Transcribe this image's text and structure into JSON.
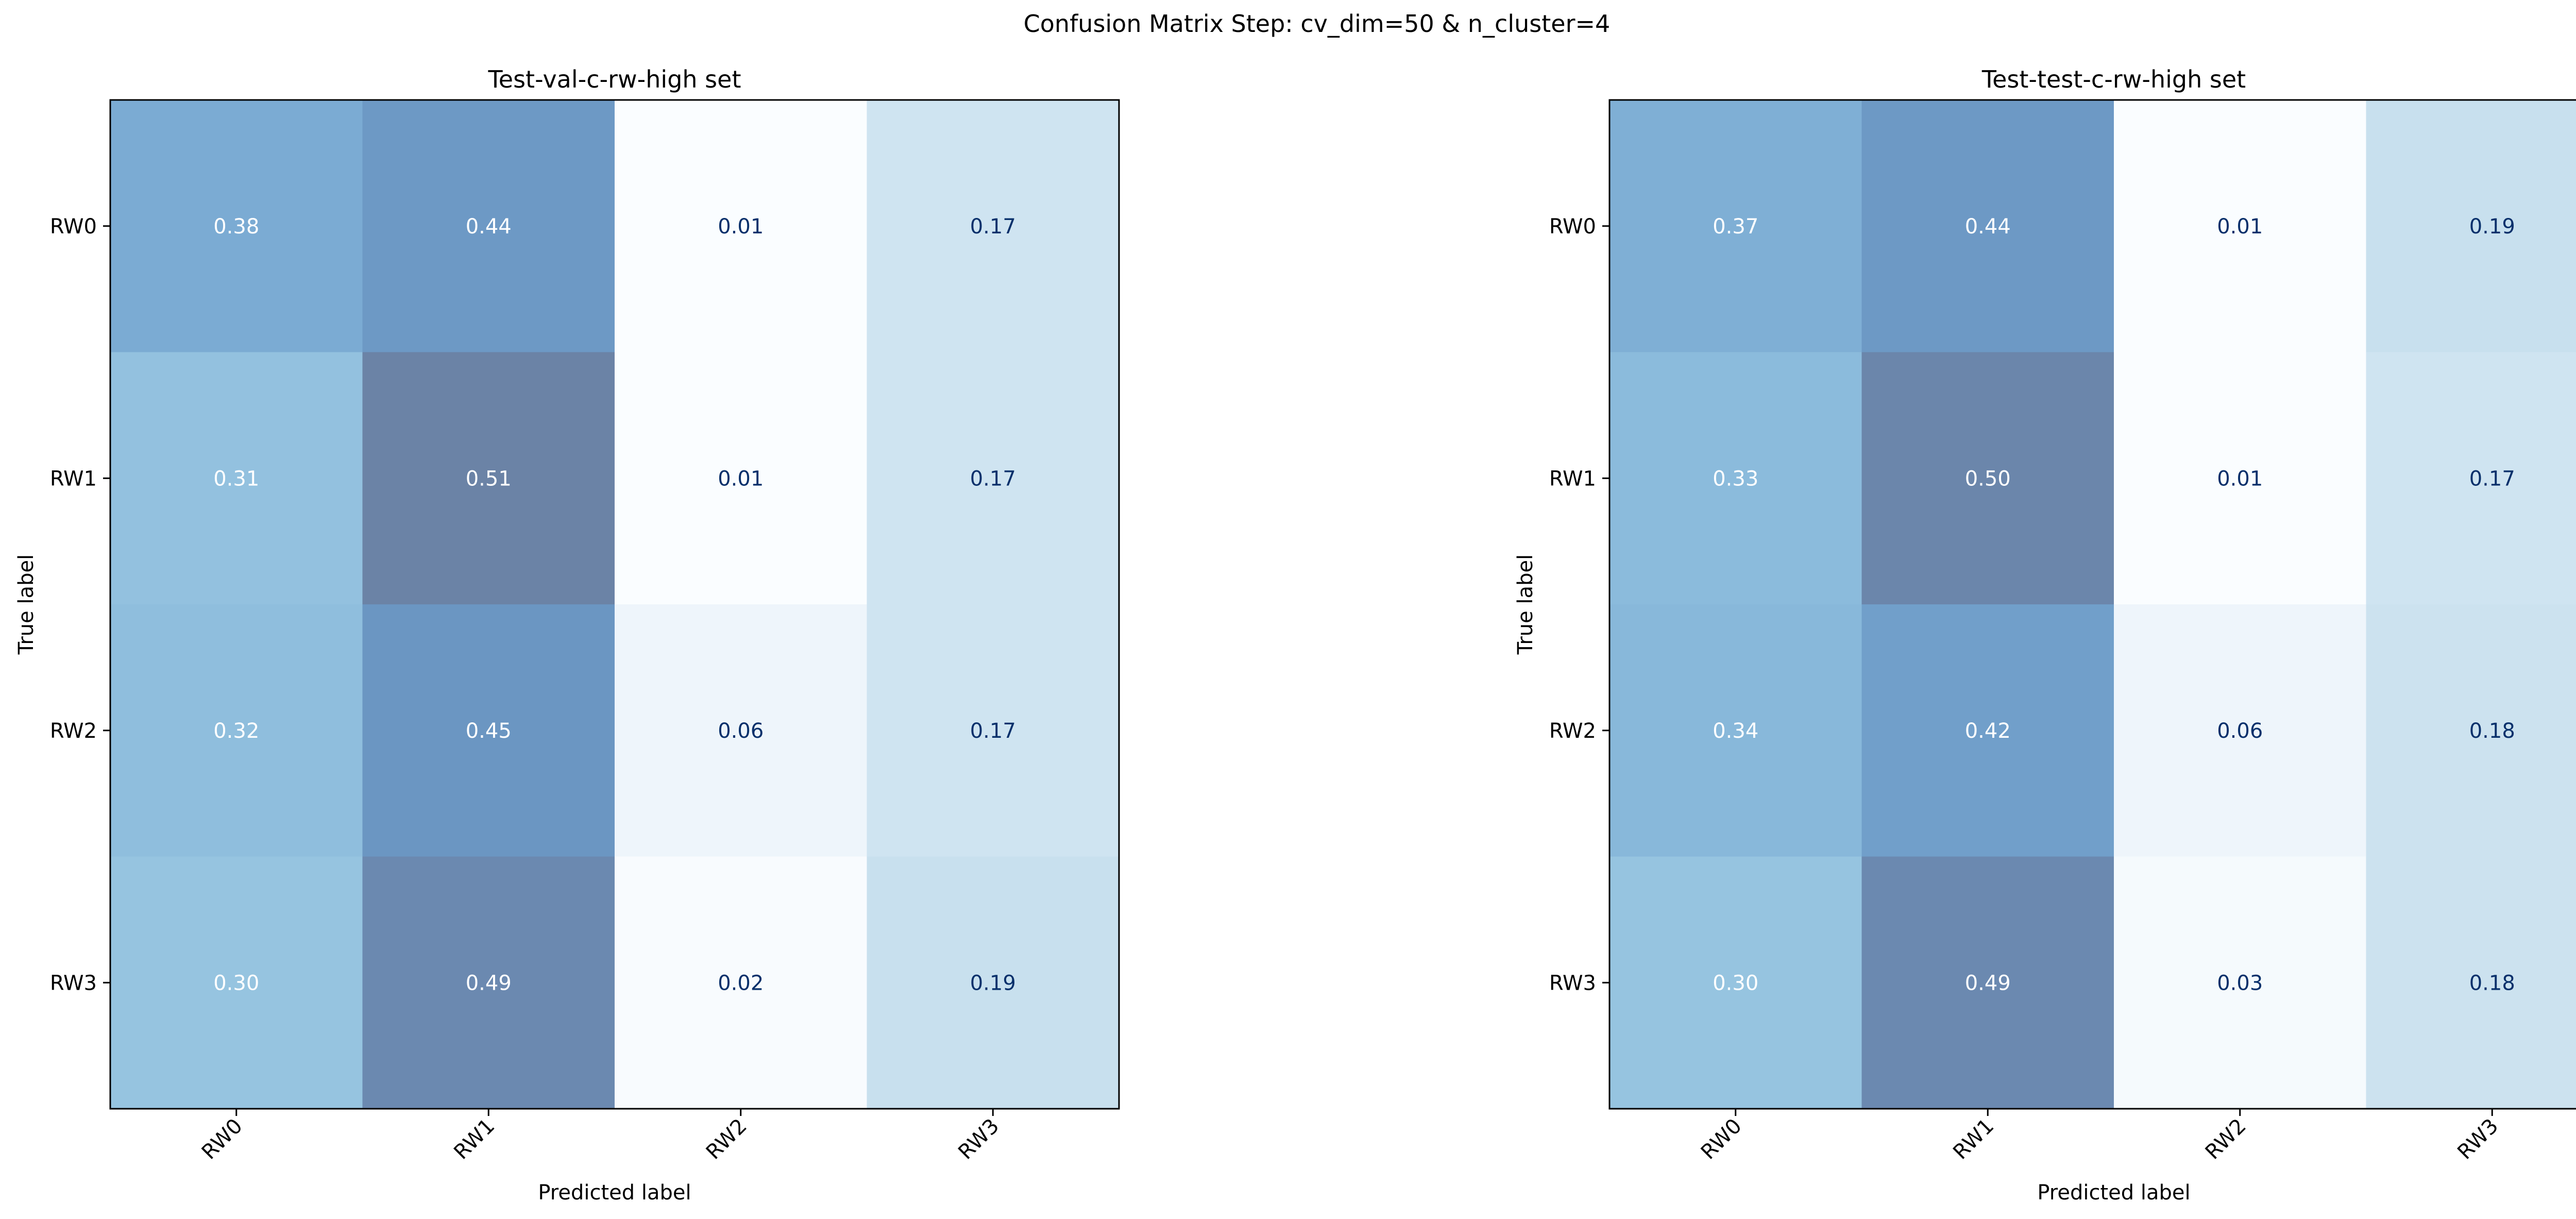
{
  "figure": {
    "suptitle": "Confusion Matrix Step: cv_dim=50 & n_cluster=4"
  },
  "chart_data": [
    {
      "type": "heatmap",
      "title": "Test-val-c-rw-high set",
      "xlabel": "Predicted label",
      "ylabel": "True label",
      "x_categories": [
        "RW0",
        "RW1",
        "RW2",
        "RW3"
      ],
      "y_categories": [
        "RW0",
        "RW1",
        "RW2",
        "RW3"
      ],
      "values": [
        [
          0.38,
          0.44,
          0.01,
          0.17
        ],
        [
          0.31,
          0.51,
          0.01,
          0.17
        ],
        [
          0.32,
          0.45,
          0.06,
          0.17
        ],
        [
          0.3,
          0.49,
          0.02,
          0.19
        ]
      ],
      "value_labels": [
        [
          "0.38",
          "0.44",
          "0.01",
          "0.17"
        ],
        [
          "0.31",
          "0.51",
          "0.01",
          "0.17"
        ],
        [
          "0.32",
          "0.45",
          "0.06",
          "0.17"
        ],
        [
          "0.30",
          "0.49",
          "0.02",
          "0.19"
        ]
      ],
      "colormap": "Blues",
      "grid": false
    },
    {
      "type": "heatmap",
      "title": "Test-test-c-rw-high set",
      "xlabel": "Predicted label",
      "ylabel": "True label",
      "x_categories": [
        "RW0",
        "RW1",
        "RW2",
        "RW3"
      ],
      "y_categories": [
        "RW0",
        "RW1",
        "RW2",
        "RW3"
      ],
      "values": [
        [
          0.37,
          0.44,
          0.01,
          0.19
        ],
        [
          0.33,
          0.5,
          0.01,
          0.17
        ],
        [
          0.34,
          0.42,
          0.06,
          0.18
        ],
        [
          0.3,
          0.49,
          0.03,
          0.18
        ]
      ],
      "value_labels": [
        [
          "0.37",
          "0.44",
          "0.01",
          "0.19"
        ],
        [
          "0.33",
          "0.50",
          "0.01",
          "0.17"
        ],
        [
          "0.34",
          "0.42",
          "0.06",
          "0.18"
        ],
        [
          "0.30",
          "0.49",
          "0.03",
          "0.18"
        ]
      ],
      "colormap": "Blues",
      "grid": false
    }
  ]
}
